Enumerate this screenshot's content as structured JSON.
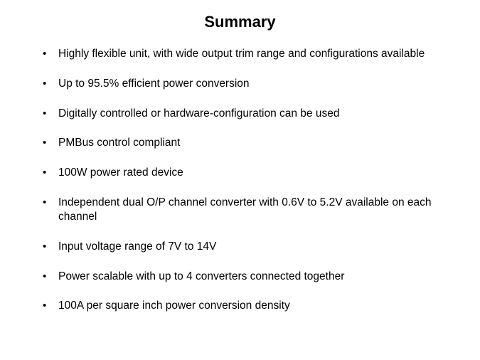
{
  "title": "Summary",
  "title_fontsize": 22,
  "title_fontweight": "bold",
  "background_color": "#ffffff",
  "text_color": "#000000",
  "bullet_fontsize": 15.5,
  "bullets": [
    "Highly flexible unit, with wide output trim range and configurations available",
    "Up to 95.5% efficient power conversion",
    "Digitally controlled or hardware-configuration can be used",
    "PMBus control compliant",
    "100W power rated device",
    "Independent dual O/P channel converter with 0.6V to 5.2V available on each channel",
    "Input voltage range of 7V to 14V",
    "Power scalable with up to 4 converters connected together",
    "100A per square inch power conversion density"
  ]
}
